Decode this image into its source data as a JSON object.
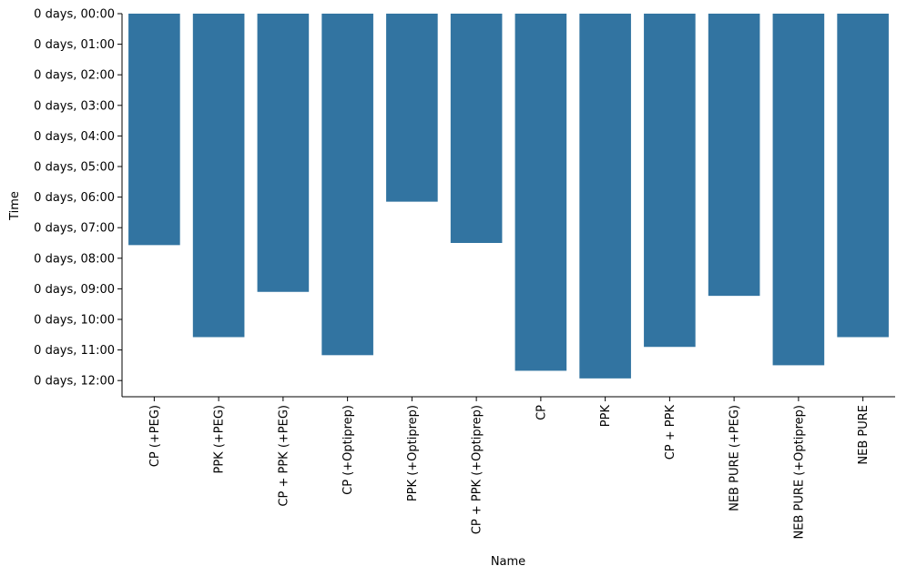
{
  "chart_data": {
    "type": "bar",
    "title": "",
    "xlabel": "Name",
    "ylabel": "Time",
    "y_inverted": true,
    "bar_color": "#3274a1",
    "grid": false,
    "ylim_hours": [
      0,
      12.5
    ],
    "y_tick_labels": [
      "0 days, 00:00",
      "0 days, 01:00",
      "0 days, 02:00",
      "0 days, 03:00",
      "0 days, 04:00",
      "0 days, 05:00",
      "0 days, 06:00",
      "0 days, 07:00",
      "0 days, 08:00",
      "0 days, 09:00",
      "0 days, 10:00",
      "0 days, 11:00",
      "0 days, 12:00"
    ],
    "y_tick_hours": [
      0,
      1,
      2,
      3,
      4,
      5,
      6,
      7,
      8,
      9,
      10,
      11,
      12
    ],
    "categories": [
      "CP (+PEG)",
      "PPK (+PEG)",
      "CP + PPK (+PEG)",
      "CP (+Optiprep)",
      "PPK (+Optiprep)",
      "CP + PPK (+Optiprep)",
      "CP",
      "PPK",
      "CP + PPK",
      "NEB PURE (+PEG)",
      "NEB PURE (+Optiprep)",
      "NEB PURE"
    ],
    "values_hours": [
      7.57,
      10.58,
      9.1,
      11.17,
      6.15,
      7.5,
      11.68,
      11.93,
      10.9,
      9.23,
      11.5,
      10.58
    ]
  }
}
